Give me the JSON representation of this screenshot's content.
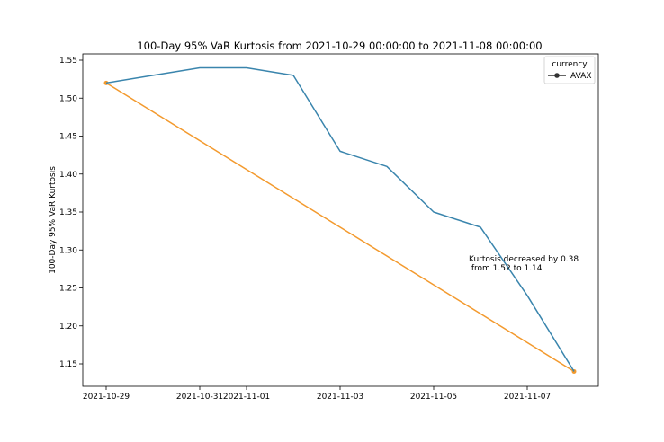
{
  "chart_data": {
    "type": "line",
    "title": "100-Day 95% VaR Kurtosis from 2021-10-29 00:00:00 to 2021-11-08 00:00:00",
    "xlabel": "",
    "ylabel": "100-Day 95% VaR Kurtosis",
    "x_ticks": [
      "2021-10-29",
      "2021-10-31",
      "2021-11-01",
      "2021-11-03",
      "2021-11-05",
      "2021-11-07"
    ],
    "y_ticks": [
      "1.15",
      "1.20",
      "1.25",
      "1.30",
      "1.35",
      "1.40",
      "1.45",
      "1.50",
      "1.55"
    ],
    "xlim": [
      "2021-10-28",
      "2021-11-08"
    ],
    "ylim": [
      1.12,
      1.56
    ],
    "series": [
      {
        "name": "AVAX",
        "color": "#3a85ad",
        "x": [
          "2021-10-29",
          "2021-10-30",
          "2021-10-31",
          "2021-11-01",
          "2021-11-02",
          "2021-11-03",
          "2021-11-04",
          "2021-11-05",
          "2021-11-06",
          "2021-11-07",
          "2021-11-08"
        ],
        "y": [
          1.52,
          1.53,
          1.54,
          1.54,
          1.53,
          1.43,
          1.41,
          1.35,
          1.33,
          1.24,
          1.14
        ]
      }
    ],
    "trend_line": {
      "color": "#f39a2e",
      "x": [
        "2021-10-29",
        "2021-11-08"
      ],
      "y": [
        1.52,
        1.14
      ]
    },
    "annotation": {
      "line1": "Kurtosis decreased by 0.38",
      "line2": " from 1.52 to 1.14",
      "x": "2021-11-05",
      "y": 1.28
    },
    "legend": {
      "title": "currency",
      "placement": "top-right",
      "entries": [
        "AVAX"
      ]
    }
  }
}
